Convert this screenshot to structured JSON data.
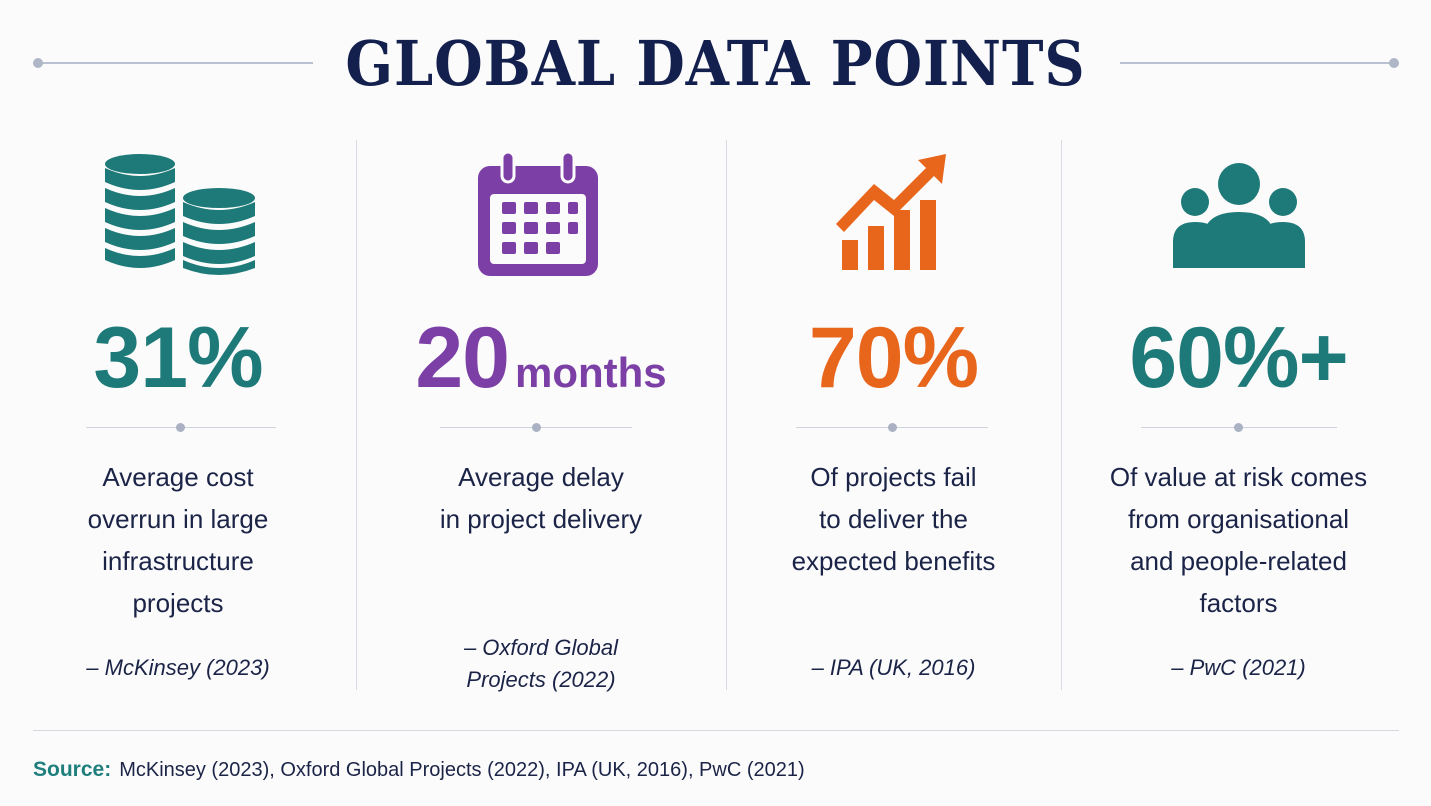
{
  "title": "GLOBAL DATA POINTS",
  "colors": {
    "navy": "#13204d",
    "teal": "#1e7a78",
    "purple": "#7b3fa6",
    "orange": "#e8661c"
  },
  "stats": [
    {
      "icon": "coin-stack-icon",
      "value": "31%",
      "unit": "",
      "color": "#1e7a78",
      "description": [
        "Average cost",
        "overrun in large",
        "infrastructure",
        "projects"
      ],
      "citation": [
        "– McKinsey (2023)"
      ]
    },
    {
      "icon": "calendar-icon",
      "value": "20",
      "unit": "months",
      "color": "#7b3fa6",
      "description": [
        "Average delay",
        "in project delivery"
      ],
      "citation": [
        "– Oxford Global",
        "Projects (2022)"
      ]
    },
    {
      "icon": "growth-chart-icon",
      "value": "70%",
      "unit": "",
      "color": "#e8661c",
      "description": [
        "Of projects fail",
        "to deliver the",
        "expected benefits"
      ],
      "citation": [
        "– IPA (UK, 2016)"
      ]
    },
    {
      "icon": "people-group-icon",
      "value": "60%+",
      "unit": "",
      "color": "#1e7a78",
      "description": [
        "Of value at risk comes",
        "from organisational",
        "and people-related",
        "factors"
      ],
      "citation": [
        "– PwC (2021)"
      ]
    }
  ],
  "footer": {
    "label": "Source:",
    "text": "McKinsey (2023), Oxford Global Projects (2022), IPA (UK, 2016), PwC (2021)"
  }
}
